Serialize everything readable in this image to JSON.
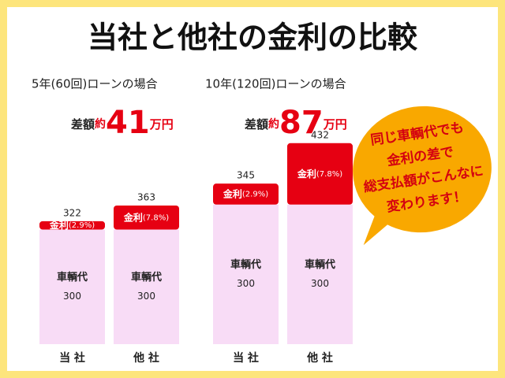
{
  "title": "当社と他社の金利の比較",
  "callout": [
    "同じ車輌代でも",
    "金利の差で",
    "総支払額がこんなに",
    "変わります！"
  ],
  "chart_data": [
    {
      "type": "bar",
      "stacked": true,
      "title": "5年(60回)ローンの場合",
      "difference_label": "差額",
      "approx_label": "約",
      "difference": 41,
      "difference_unit": "万円",
      "categories": [
        "当 社",
        "他 社"
      ],
      "series": [
        {
          "name": "車輌代",
          "color": "#f8dcf6",
          "values": [
            300,
            300
          ]
        },
        {
          "name": "金利",
          "color": "#e60012",
          "values": [
            22,
            63
          ],
          "rate_labels": [
            "(2.9%)",
            "(7.8%)"
          ]
        }
      ],
      "total_labels": [
        322,
        363
      ],
      "ylim": [
        0,
        530
      ]
    },
    {
      "type": "bar",
      "stacked": true,
      "title": "10年(120回)ローンの場合",
      "difference_label": "差額",
      "approx_label": "約",
      "difference": 87,
      "difference_unit": "万円",
      "categories": [
        "当 社",
        "他 社"
      ],
      "series": [
        {
          "name": "車輌代",
          "color": "#f8dcf6",
          "values": [
            300,
            300
          ]
        },
        {
          "name": "金利",
          "color": "#e60012",
          "values": [
            45,
            132
          ],
          "rate_labels": [
            "(2.9%)",
            "(7.8%)"
          ]
        }
      ],
      "total_labels": [
        345,
        432
      ],
      "ylim": [
        0,
        435
      ]
    }
  ]
}
